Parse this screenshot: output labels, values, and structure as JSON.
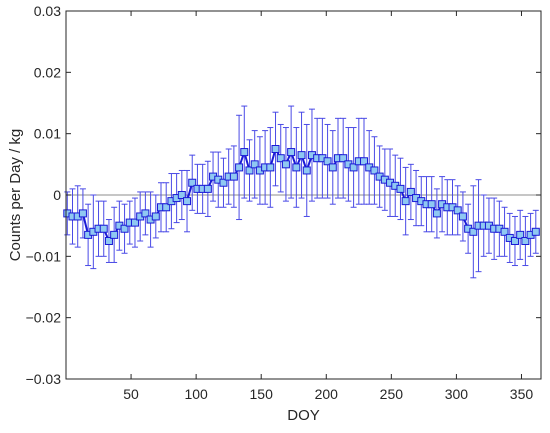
{
  "chart_data": {
    "type": "line",
    "xlabel": "DOY",
    "ylabel": "Counts per Day / kg",
    "xlim": [
      0,
      365
    ],
    "ylim": [
      -0.03,
      0.03
    ],
    "xticks": [
      50,
      100,
      150,
      200,
      250,
      300,
      350
    ],
    "xtick_labels": [
      "50",
      "100",
      "150",
      "200",
      "250",
      "300",
      "350"
    ],
    "yticks": [
      -0.03,
      -0.02,
      -0.01,
      0,
      0.01,
      0.02,
      0.03
    ],
    "ytick_labels": [
      "−0.03",
      "−0.02",
      "−0.01",
      "0",
      "0.01",
      "0.02",
      "0.03"
    ],
    "grid": false,
    "reference_line_y": 0,
    "colors": {
      "line": "#1a1ad6",
      "marker_fill": "#8fc8f2",
      "marker_edge": "#1a1ad6",
      "errorbar": "#4a4ae6",
      "zero_line": "#8c8c8c",
      "axis": "#262626"
    },
    "series": [
      {
        "x": [
          1,
          5,
          9,
          13,
          17,
          21,
          25,
          29,
          33,
          37,
          41,
          45,
          49,
          53,
          57,
          61,
          65,
          69,
          73,
          77,
          81,
          85,
          89,
          93,
          97,
          101,
          105,
          109,
          113,
          117,
          121,
          125,
          129,
          133,
          137,
          141,
          145,
          149,
          153,
          157,
          161,
          165,
          169,
          173,
          177,
          181,
          185,
          189,
          193,
          197,
          201,
          205,
          209,
          213,
          217,
          221,
          225,
          229,
          233,
          237,
          241,
          245,
          249,
          253,
          257,
          261,
          265,
          269,
          273,
          277,
          281,
          285,
          289,
          293,
          297,
          301,
          305,
          309,
          313,
          317,
          321,
          325,
          329,
          333,
          337,
          341,
          345,
          349,
          353,
          357,
          361
        ],
        "y": [
          -0.003,
          -0.0035,
          -0.0035,
          -0.003,
          -0.0065,
          -0.006,
          -0.0055,
          -0.0055,
          -0.0075,
          -0.0065,
          -0.005,
          -0.0055,
          -0.0045,
          -0.0045,
          -0.0035,
          -0.003,
          -0.004,
          -0.0035,
          -0.002,
          -0.002,
          -0.001,
          -0.0005,
          0.0,
          -0.001,
          0.002,
          0.001,
          0.001,
          0.001,
          0.003,
          0.0025,
          0.002,
          0.003,
          0.003,
          0.0045,
          0.007,
          0.004,
          0.005,
          0.004,
          0.0045,
          0.0045,
          0.0075,
          0.006,
          0.005,
          0.007,
          0.0045,
          0.0065,
          0.004,
          0.0065,
          0.006,
          0.006,
          0.0055,
          0.0045,
          0.006,
          0.006,
          0.005,
          0.0045,
          0.0055,
          0.0055,
          0.0045,
          0.004,
          0.003,
          0.0025,
          0.002,
          0.0015,
          0.001,
          -0.001,
          0.0005,
          -0.0005,
          -0.001,
          -0.0015,
          -0.0015,
          -0.003,
          -0.0015,
          -0.002,
          -0.002,
          -0.0025,
          -0.0035,
          -0.0055,
          -0.006,
          -0.005,
          -0.005,
          -0.005,
          -0.0055,
          -0.0055,
          -0.006,
          -0.007,
          -0.0075,
          -0.0065,
          -0.0075,
          -0.0065,
          -0.006
        ],
        "yerr": [
          0.0035,
          0.0045,
          0.005,
          0.004,
          0.005,
          0.006,
          0.0045,
          0.0045,
          0.0035,
          0.0045,
          0.004,
          0.004,
          0.0035,
          0.004,
          0.004,
          0.0035,
          0.0045,
          0.0035,
          0.004,
          0.004,
          0.0045,
          0.004,
          0.004,
          0.005,
          0.0045,
          0.004,
          0.004,
          0.0045,
          0.004,
          0.0045,
          0.004,
          0.0045,
          0.005,
          0.0085,
          0.0075,
          0.005,
          0.0055,
          0.0055,
          0.006,
          0.0065,
          0.006,
          0.0055,
          0.006,
          0.0075,
          0.0065,
          0.007,
          0.0075,
          0.0075,
          0.0065,
          0.0065,
          0.006,
          0.006,
          0.0065,
          0.0065,
          0.006,
          0.0065,
          0.007,
          0.007,
          0.006,
          0.0055,
          0.005,
          0.005,
          0.0055,
          0.005,
          0.005,
          0.0055,
          0.0045,
          0.0045,
          0.004,
          0.0045,
          0.0045,
          0.004,
          0.0045,
          0.0045,
          0.0045,
          0.004,
          0.004,
          0.004,
          0.0075,
          0.0075,
          0.005,
          0.0045,
          0.005,
          0.0045,
          0.004,
          0.004,
          0.004,
          0.004,
          0.004,
          0.0035,
          0.0035
        ]
      }
    ]
  }
}
